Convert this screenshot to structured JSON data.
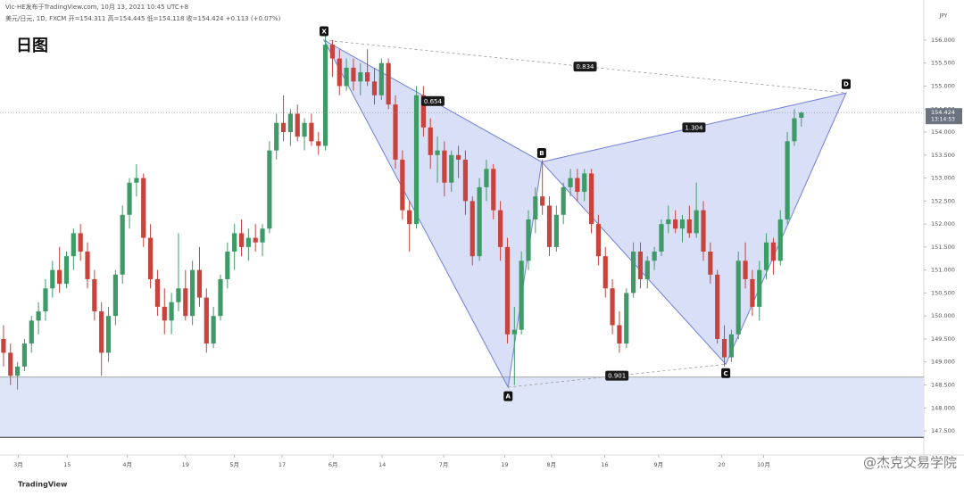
{
  "chart_data": {
    "type": "candlestick",
    "title": "日图",
    "header": "Vic-HE发布于TradingView.com, 10月 13, 2021 10:45 UTC+8",
    "symbol_line": "美元/日元, 1D, FXCM  开=154.311 高=154.445 低=154.118 收=154.424 +0.113 (+0.07%)",
    "currency": "JPY",
    "footer_logo": "TradingView",
    "watermark": "@杰克交易学院",
    "up_color": "#3e9b68",
    "down_color": "#c7433c",
    "xlim": [
      0,
      132
    ],
    "ylim": [
      147,
      156.5
    ],
    "yticks": [
      {
        "value": 147.5,
        "label": "147.500"
      },
      {
        "value": 148,
        "label": "148.000"
      },
      {
        "value": 148.5,
        "label": "148.500"
      },
      {
        "value": 149,
        "label": "149.000"
      },
      {
        "value": 149.5,
        "label": "149.500"
      },
      {
        "value": 150,
        "label": "150.000"
      },
      {
        "value": 150.5,
        "label": "150.500"
      },
      {
        "value": 151,
        "label": "151.000"
      },
      {
        "value": 151.5,
        "label": "151.500"
      },
      {
        "value": 152,
        "label": "152.000"
      },
      {
        "value": 152.5,
        "label": "152.500"
      },
      {
        "value": 153,
        "label": "153.000"
      },
      {
        "value": 153.5,
        "label": "153.500"
      },
      {
        "value": 154,
        "label": "154.000"
      },
      {
        "value": 154.5,
        "label": "154.500"
      },
      {
        "value": 155,
        "label": "155.000"
      },
      {
        "value": 155.5,
        "label": "155.500"
      },
      {
        "value": 156,
        "label": "156.000"
      }
    ],
    "xticks": [
      {
        "value": 2.6,
        "label": "3月"
      },
      {
        "value": 9.6,
        "label": "15"
      },
      {
        "value": 18.2,
        "label": "4月"
      },
      {
        "value": 26.5,
        "label": "19"
      },
      {
        "value": 33.5,
        "label": "5月"
      },
      {
        "value": 40.3,
        "label": "17"
      },
      {
        "value": 47.6,
        "label": "6月"
      },
      {
        "value": 54.6,
        "label": "14"
      },
      {
        "value": 63.4,
        "label": "7月"
      },
      {
        "value": 72.1,
        "label": "19"
      },
      {
        "value": 78.8,
        "label": "8月"
      },
      {
        "value": 86.4,
        "label": "16"
      },
      {
        "value": 94.1,
        "label": "9月"
      },
      {
        "value": 103.1,
        "label": "20"
      },
      {
        "value": 109.1,
        "label": "10月"
      }
    ],
    "zone": [
      147.36,
      148.67
    ],
    "last_price": {
      "value": 154.424,
      "label": "154.424"
    },
    "countdown": "13:14:53",
    "pattern": {
      "color": "#6f7fd6",
      "fill": "#7b8de6",
      "points": [
        {
          "label": "X",
          "x": 46.3,
          "y": 156.0
        },
        {
          "label": "A",
          "x": 72.6,
          "y": 148.45
        },
        {
          "label": "B",
          "x": 77.4,
          "y": 153.35
        },
        {
          "label": "C",
          "x": 103.7,
          "y": 148.95
        },
        {
          "label": "D",
          "x": 120.9,
          "y": 154.85
        }
      ],
      "ratios": [
        {
          "label": "0.834",
          "between": [
            "X",
            "D"
          ]
        },
        {
          "label": "0.654",
          "between": [
            "X",
            "B"
          ]
        },
        {
          "label": "1.304",
          "between": [
            "B",
            "D"
          ]
        },
        {
          "label": "0.901",
          "between": [
            "A",
            "C"
          ]
        }
      ]
    },
    "ohlc": [
      [
        149.5,
        149.8,
        148.9,
        149.2
      ],
      [
        149.2,
        149.4,
        148.5,
        148.7
      ],
      [
        148.7,
        149.0,
        148.4,
        148.9
      ],
      [
        148.9,
        149.5,
        148.8,
        149.4
      ],
      [
        149.4,
        150.0,
        149.2,
        149.9
      ],
      [
        149.9,
        150.3,
        149.6,
        150.1
      ],
      [
        150.1,
        150.8,
        149.9,
        150.6
      ],
      [
        150.6,
        151.2,
        150.4,
        151.0
      ],
      [
        151.0,
        151.5,
        150.5,
        150.7
      ],
      [
        150.7,
        151.4,
        150.6,
        151.3
      ],
      [
        151.3,
        151.9,
        151.0,
        151.8
      ],
      [
        151.8,
        152.0,
        151.2,
        151.4
      ],
      [
        151.4,
        151.6,
        150.6,
        150.8
      ],
      [
        150.8,
        151.0,
        149.9,
        150.1
      ],
      [
        150.1,
        150.3,
        148.7,
        149.2
      ],
      [
        149.2,
        150.2,
        149.0,
        150.0
      ],
      [
        150.0,
        151.0,
        149.8,
        150.9
      ],
      [
        150.9,
        152.4,
        150.7,
        152.2
      ],
      [
        152.2,
        153.0,
        151.9,
        152.9
      ],
      [
        152.9,
        153.3,
        152.6,
        153.0
      ],
      [
        153.0,
        153.1,
        151.5,
        151.7
      ],
      [
        151.7,
        152.0,
        150.6,
        150.8
      ],
      [
        150.8,
        151.0,
        150.0,
        150.2
      ],
      [
        150.2,
        150.6,
        149.6,
        149.9
      ],
      [
        149.9,
        150.5,
        149.6,
        150.3
      ],
      [
        150.3,
        151.8,
        150.1,
        150.6
      ],
      [
        150.6,
        151.0,
        149.9,
        150.0
      ],
      [
        150.0,
        151.2,
        149.8,
        151.0
      ],
      [
        151.0,
        151.5,
        150.2,
        150.4
      ],
      [
        150.4,
        150.6,
        149.2,
        149.4
      ],
      [
        149.4,
        150.2,
        149.3,
        150.0
      ],
      [
        150.0,
        150.9,
        149.9,
        150.8
      ],
      [
        150.8,
        151.6,
        150.6,
        151.4
      ],
      [
        151.4,
        152.0,
        151.0,
        151.8
      ],
      [
        151.8,
        152.1,
        151.3,
        151.5
      ],
      [
        151.5,
        151.9,
        151.2,
        151.7
      ],
      [
        151.7,
        152.0,
        151.4,
        151.6
      ],
      [
        151.6,
        152.0,
        151.3,
        151.9
      ],
      [
        151.9,
        153.8,
        151.8,
        153.6
      ],
      [
        153.6,
        154.4,
        153.4,
        154.2
      ],
      [
        154.2,
        154.8,
        153.8,
        154.0
      ],
      [
        154.0,
        154.5,
        153.7,
        154.4
      ],
      [
        154.4,
        154.6,
        153.8,
        153.9
      ],
      [
        153.9,
        154.3,
        153.6,
        154.2
      ],
      [
        154.2,
        154.4,
        153.7,
        153.8
      ],
      [
        153.8,
        154.0,
        153.5,
        153.7
      ],
      [
        153.7,
        156.1,
        153.6,
        155.9
      ],
      [
        155.9,
        156.0,
        155.2,
        155.6
      ],
      [
        155.6,
        155.8,
        154.8,
        155.0
      ],
      [
        155.0,
        155.6,
        154.9,
        155.4
      ],
      [
        155.4,
        155.6,
        154.9,
        155.1
      ],
      [
        155.1,
        155.5,
        154.8,
        155.3
      ],
      [
        155.3,
        155.8,
        155.0,
        155.1
      ],
      [
        155.1,
        155.4,
        154.6,
        154.8
      ],
      [
        154.8,
        155.6,
        154.7,
        155.5
      ],
      [
        155.5,
        155.6,
        154.5,
        154.6
      ],
      [
        154.6,
        154.8,
        153.2,
        153.4
      ],
      [
        153.4,
        153.6,
        152.1,
        152.3
      ],
      [
        152.3,
        152.5,
        151.4,
        152.0
      ],
      [
        152.0,
        155.0,
        151.9,
        154.8
      ],
      [
        154.8,
        155.0,
        153.9,
        154.1
      ],
      [
        154.1,
        154.3,
        153.2,
        153.5
      ],
      [
        153.5,
        153.9,
        152.9,
        153.6
      ],
      [
        153.6,
        153.8,
        152.6,
        152.9
      ],
      [
        152.9,
        153.6,
        152.7,
        153.5
      ],
      [
        153.5,
        153.7,
        153.0,
        153.4
      ],
      [
        153.4,
        153.6,
        152.2,
        152.5
      ],
      [
        152.5,
        152.6,
        151.1,
        151.3
      ],
      [
        151.3,
        153.0,
        151.2,
        152.8
      ],
      [
        152.8,
        153.4,
        152.5,
        153.2
      ],
      [
        153.2,
        153.3,
        152.1,
        152.3
      ],
      [
        152.3,
        152.5,
        151.2,
        151.5
      ],
      [
        151.5,
        151.7,
        149.4,
        149.6
      ],
      [
        149.6,
        150.2,
        148.5,
        149.7
      ],
      [
        149.7,
        151.4,
        149.6,
        151.2
      ],
      [
        151.2,
        152.3,
        151.0,
        152.1
      ],
      [
        152.1,
        152.8,
        151.8,
        152.6
      ],
      [
        152.6,
        153.4,
        152.2,
        152.4
      ],
      [
        152.4,
        152.6,
        151.3,
        151.5
      ],
      [
        151.5,
        152.4,
        151.4,
        152.2
      ],
      [
        152.2,
        152.9,
        152.0,
        152.8
      ],
      [
        152.8,
        153.2,
        152.6,
        153.0
      ],
      [
        153.0,
        153.2,
        152.5,
        152.7
      ],
      [
        152.7,
        153.2,
        152.5,
        153.1
      ],
      [
        153.1,
        153.2,
        151.8,
        152.0
      ],
      [
        152.0,
        152.2,
        151.1,
        151.3
      ],
      [
        151.3,
        151.5,
        150.4,
        150.6
      ],
      [
        150.6,
        150.8,
        149.6,
        149.8
      ],
      [
        149.8,
        150.1,
        149.2,
        149.4
      ],
      [
        149.4,
        150.6,
        149.3,
        150.5
      ],
      [
        150.5,
        151.6,
        150.4,
        151.4
      ],
      [
        151.4,
        151.6,
        150.6,
        150.8
      ],
      [
        150.8,
        151.3,
        150.6,
        151.2
      ],
      [
        151.2,
        151.5,
        151.0,
        151.4
      ],
      [
        151.4,
        152.1,
        151.3,
        152.0
      ],
      [
        152.0,
        152.4,
        151.8,
        152.1
      ],
      [
        152.1,
        152.3,
        151.8,
        151.9
      ],
      [
        151.9,
        152.2,
        151.6,
        152.1
      ],
      [
        152.1,
        152.4,
        151.7,
        151.8
      ],
      [
        151.8,
        152.9,
        151.7,
        152.3
      ],
      [
        152.3,
        152.5,
        151.2,
        151.4
      ],
      [
        151.4,
        151.6,
        150.7,
        150.9
      ],
      [
        150.9,
        151.0,
        149.4,
        149.5
      ],
      [
        149.5,
        149.8,
        148.9,
        149.1
      ],
      [
        149.1,
        149.7,
        149.0,
        149.6
      ],
      [
        149.6,
        151.4,
        149.5,
        151.2
      ],
      [
        151.2,
        151.6,
        150.6,
        150.8
      ],
      [
        150.8,
        151.0,
        150.0,
        150.2
      ],
      [
        150.2,
        151.2,
        149.9,
        151.0
      ],
      [
        151.0,
        151.8,
        150.8,
        151.6
      ],
      [
        151.6,
        151.7,
        150.9,
        151.2
      ],
      [
        151.2,
        152.3,
        151.1,
        152.1
      ],
      [
        152.1,
        154.0,
        152.0,
        153.8
      ],
      [
        153.8,
        154.5,
        153.7,
        154.3
      ],
      [
        154.311,
        154.445,
        154.118,
        154.424
      ]
    ]
  }
}
